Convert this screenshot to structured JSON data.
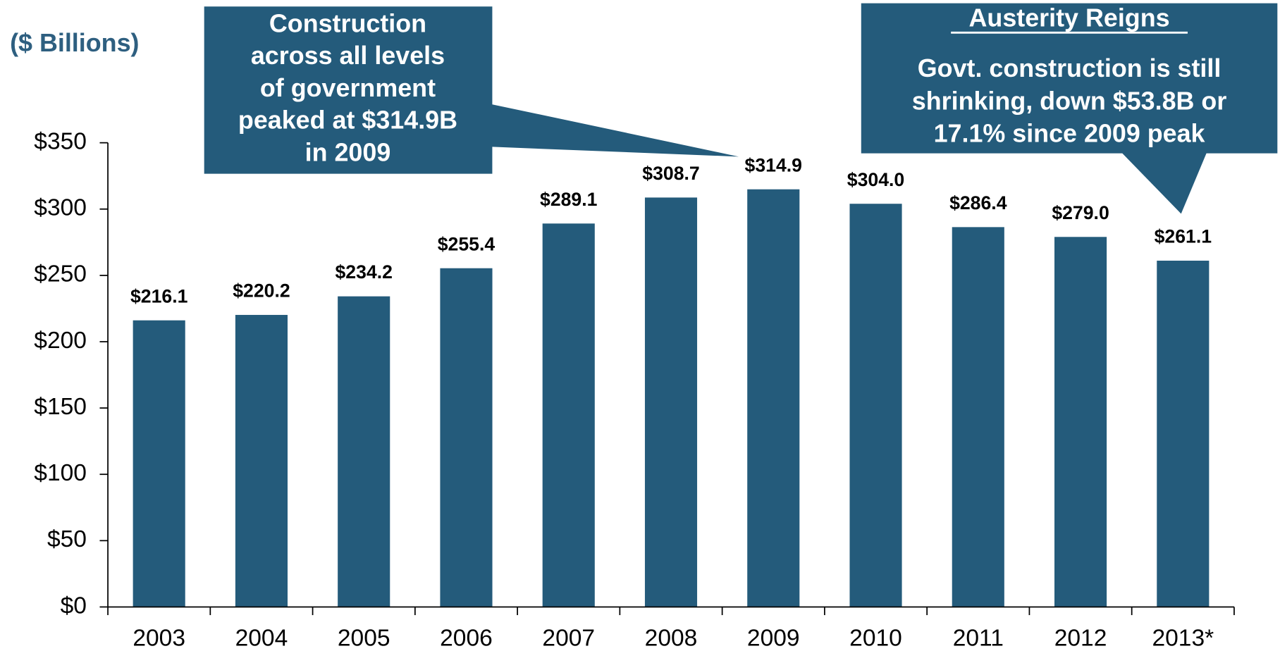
{
  "chart_data": {
    "type": "bar",
    "y_axis_label": "($ Billions)",
    "categories": [
      "2003",
      "2004",
      "2005",
      "2006",
      "2007",
      "2008",
      "2009",
      "2010",
      "2011",
      "2012",
      "2013*"
    ],
    "values": [
      216.1,
      220.2,
      234.2,
      255.4,
      289.1,
      308.7,
      314.9,
      304.0,
      286.4,
      279.0,
      261.1
    ],
    "value_labels": [
      "$216.1",
      "$220.2",
      "$234.2",
      "$255.4",
      "$289.1",
      "$308.7",
      "$314.9",
      "$304.0",
      "$286.4",
      "$279.0",
      "$261.1"
    ],
    "color": "#245b7b",
    "ylim": [
      0,
      350
    ],
    "yticks": [
      {
        "value": 0,
        "label": "$0"
      },
      {
        "value": 50,
        "label": "$50"
      },
      {
        "value": 100,
        "label": "$100"
      },
      {
        "value": 150,
        "label": "$150"
      },
      {
        "value": 200,
        "label": "$200"
      },
      {
        "value": 250,
        "label": "$250"
      },
      {
        "value": 300,
        "label": "$300"
      },
      {
        "value": 350,
        "label": "$350"
      }
    ],
    "grid": false,
    "annotations": [
      {
        "lines": [
          "Construction",
          "across all levels",
          "of government",
          "peaked at $314.9B",
          "in 2009"
        ]
      },
      {
        "title": "Austerity Reigns",
        "lines": [
          "Govt. construction is still",
          "shrinking, down $53.8B or",
          "17.1% since 2009 peak"
        ]
      }
    ]
  }
}
